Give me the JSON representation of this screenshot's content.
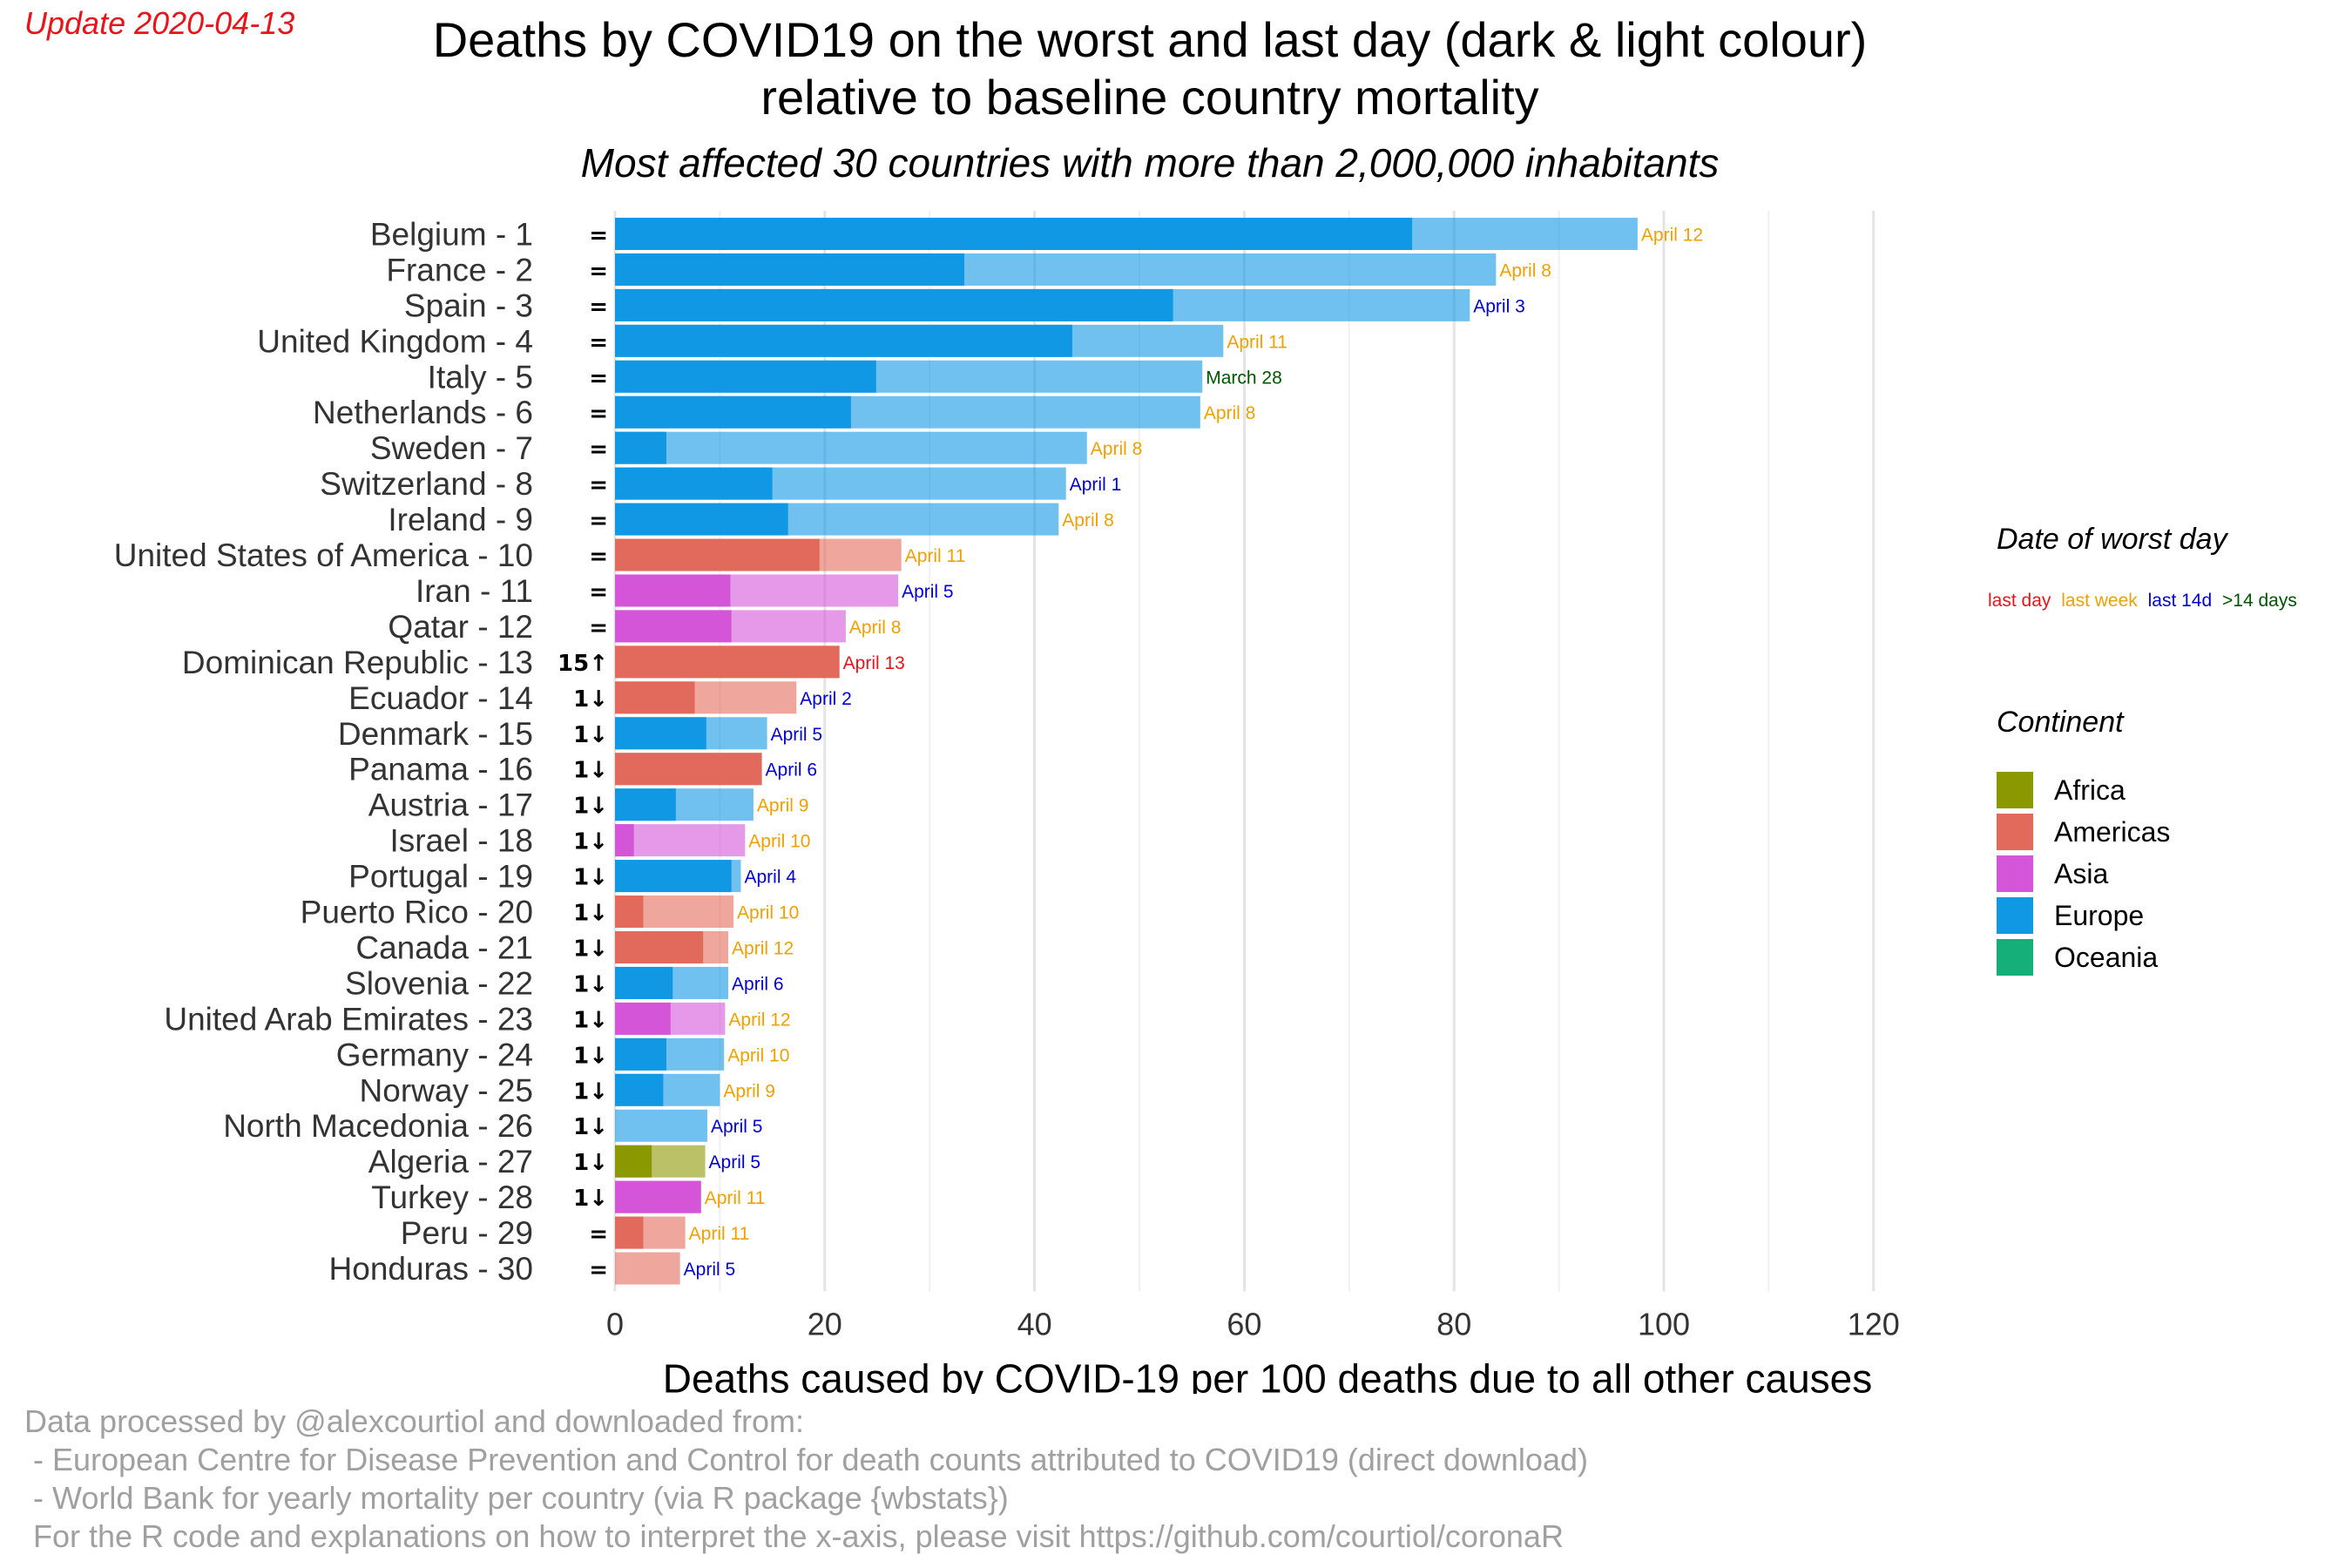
{
  "update_text": "Update 2020-04-13",
  "title_lines": [
    "Deaths by COVID19 on the worst and last day (dark & light colour)",
    "relative to baseline country mortality"
  ],
  "subtitle": "Most affected 30 countries with more than 2,000,000 inhabitants",
  "legend": {
    "date_title": "Date of worst day",
    "date_items": [
      {
        "label": "last day",
        "color": "#e8141b"
      },
      {
        "label": "last week",
        "color": "#f0a000"
      },
      {
        "label": "last 14d",
        "color": "#0000d4"
      },
      {
        "label": ">14 days",
        "color": "#005500"
      }
    ],
    "continent_title": "Continent",
    "continents": [
      {
        "name": "Africa",
        "color": "#8c9800"
      },
      {
        "name": "Americas",
        "color": "#e26a5c"
      },
      {
        "name": "Asia",
        "color": "#d455d8"
      },
      {
        "name": "Europe",
        "color": "#1098e4"
      },
      {
        "name": "Oceania",
        "color": "#15b07a"
      }
    ]
  },
  "caption_lines": [
    "Data processed by @alexcourtiol and downloaded from:",
    " - European Centre for Disease Prevention and Control for death counts attributed to COVID19 (direct download)",
    " - World Bank for yearly mortality per country (via R package {wbstats})",
    " For the R code and explanations on how to interpret the x-axis, please visit https://github.com/courtiol/coronaR"
  ],
  "chart_data": {
    "type": "bar",
    "orientation": "horizontal",
    "xlabel": "Deaths caused by COVID-19 per 100 deaths due to all other causes",
    "xlim": [
      0,
      120
    ],
    "xticks": [
      0,
      20,
      40,
      60,
      80,
      100,
      120
    ],
    "grid": true,
    "series": [
      {
        "name": "last day",
        "shade": "dark"
      },
      {
        "name": "worst day",
        "shade": "light"
      }
    ],
    "rows": [
      {
        "label": "Belgium - 1",
        "rank_change": "=",
        "continent": "Europe",
        "last": 76,
        "worst": 97.5,
        "date": "April 12",
        "date_class": "last week"
      },
      {
        "label": "France - 2",
        "rank_change": "=",
        "continent": "Europe",
        "last": 33.3,
        "worst": 84,
        "date": "April 8",
        "date_class": "last week"
      },
      {
        "label": "Spain - 3",
        "rank_change": "=",
        "continent": "Europe",
        "last": 53.2,
        "worst": 81.5,
        "date": "April 3",
        "date_class": "last 14d"
      },
      {
        "label": "United Kingdom - 4",
        "rank_change": "=",
        "continent": "Europe",
        "last": 43.6,
        "worst": 58,
        "date": "April 11",
        "date_class": "last week"
      },
      {
        "label": "Italy - 5",
        "rank_change": "=",
        "continent": "Europe",
        "last": 24.9,
        "worst": 56,
        "date": "March 28",
        "date_class": ">14 days"
      },
      {
        "label": "Netherlands - 6",
        "rank_change": "=",
        "continent": "Europe",
        "last": 22.5,
        "worst": 55.8,
        "date": "April 8",
        "date_class": "last week"
      },
      {
        "label": "Sweden - 7",
        "rank_change": "=",
        "continent": "Europe",
        "last": 4.9,
        "worst": 45,
        "date": "April 8",
        "date_class": "last week"
      },
      {
        "label": "Switzerland - 8",
        "rank_change": "=",
        "continent": "Europe",
        "last": 15,
        "worst": 43,
        "date": "April 1",
        "date_class": "last 14d"
      },
      {
        "label": "Ireland - 9",
        "rank_change": "=",
        "continent": "Europe",
        "last": 16.5,
        "worst": 42.3,
        "date": "April 8",
        "date_class": "last week"
      },
      {
        "label": "United States of America - 10",
        "rank_change": "=",
        "continent": "Americas",
        "last": 19.5,
        "worst": 27.3,
        "date": "April 11",
        "date_class": "last week"
      },
      {
        "label": "Iran - 11",
        "rank_change": "=",
        "continent": "Asia",
        "last": 11,
        "worst": 27,
        "date": "April 5",
        "date_class": "last 14d"
      },
      {
        "label": "Qatar - 12",
        "rank_change": "=",
        "continent": "Asia",
        "last": 11.1,
        "worst": 22,
        "date": "April 8",
        "date_class": "last week"
      },
      {
        "label": "Dominican Republic - 13",
        "rank_change": "15↑",
        "continent": "Americas",
        "last": 21.4,
        "worst": 21.4,
        "date": "April 13",
        "date_class": "last day"
      },
      {
        "label": "Ecuador - 14",
        "rank_change": "1↓",
        "continent": "Americas",
        "last": 7.6,
        "worst": 17.3,
        "date": "April 2",
        "date_class": "last 14d"
      },
      {
        "label": "Denmark - 15",
        "rank_change": "1↓",
        "continent": "Europe",
        "last": 8.7,
        "worst": 14.5,
        "date": "April 5",
        "date_class": "last 14d"
      },
      {
        "label": "Panama - 16",
        "rank_change": "1↓",
        "continent": "Americas",
        "last": 14,
        "worst": 14,
        "date": "April 6",
        "date_class": "last 14d"
      },
      {
        "label": "Austria - 17",
        "rank_change": "1↓",
        "continent": "Europe",
        "last": 5.8,
        "worst": 13.2,
        "date": "April 9",
        "date_class": "last week"
      },
      {
        "label": "Israel - 18",
        "rank_change": "1↓",
        "continent": "Asia",
        "last": 1.8,
        "worst": 12.4,
        "date": "April 10",
        "date_class": "last week"
      },
      {
        "label": "Portugal - 19",
        "rank_change": "1↓",
        "continent": "Europe",
        "last": 11.1,
        "worst": 12,
        "date": "April 4",
        "date_class": "last 14d"
      },
      {
        "label": "Puerto Rico - 20",
        "rank_change": "1↓",
        "continent": "Americas",
        "last": 2.7,
        "worst": 11.3,
        "date": "April 10",
        "date_class": "last week"
      },
      {
        "label": "Canada - 21",
        "rank_change": "1↓",
        "continent": "Americas",
        "last": 8.4,
        "worst": 10.8,
        "date": "April 12",
        "date_class": "last week"
      },
      {
        "label": "Slovenia - 22",
        "rank_change": "1↓",
        "continent": "Europe",
        "last": 5.5,
        "worst": 10.8,
        "date": "April 6",
        "date_class": "last 14d"
      },
      {
        "label": "United Arab Emirates - 23",
        "rank_change": "1↓",
        "continent": "Asia",
        "last": 5.3,
        "worst": 10.5,
        "date": "April 12",
        "date_class": "last week"
      },
      {
        "label": "Germany - 24",
        "rank_change": "1↓",
        "continent": "Europe",
        "last": 4.9,
        "worst": 10.4,
        "date": "April 10",
        "date_class": "last week"
      },
      {
        "label": "Norway - 25",
        "rank_change": "1↓",
        "continent": "Europe",
        "last": 4.6,
        "worst": 10,
        "date": "April 9",
        "date_class": "last week"
      },
      {
        "label": "North Macedonia - 26",
        "rank_change": "1↓",
        "continent": "Europe",
        "last": 0,
        "worst": 8.8,
        "date": "April 5",
        "date_class": "last 14d"
      },
      {
        "label": "Algeria - 27",
        "rank_change": "1↓",
        "continent": "Africa",
        "last": 3.5,
        "worst": 8.6,
        "date": "April 5",
        "date_class": "last 14d"
      },
      {
        "label": "Turkey - 28",
        "rank_change": "1↓",
        "continent": "Asia",
        "last": 8.2,
        "worst": 8.2,
        "date": "April 11",
        "date_class": "last week"
      },
      {
        "label": "Peru - 29",
        "rank_change": "=",
        "continent": "Americas",
        "last": 2.7,
        "worst": 6.7,
        "date": "April 11",
        "date_class": "last week"
      },
      {
        "label": "Honduras - 30",
        "rank_change": "=",
        "continent": "Americas",
        "last": 0,
        "worst": 6.2,
        "date": "April 5",
        "date_class": "last 14d"
      }
    ]
  }
}
